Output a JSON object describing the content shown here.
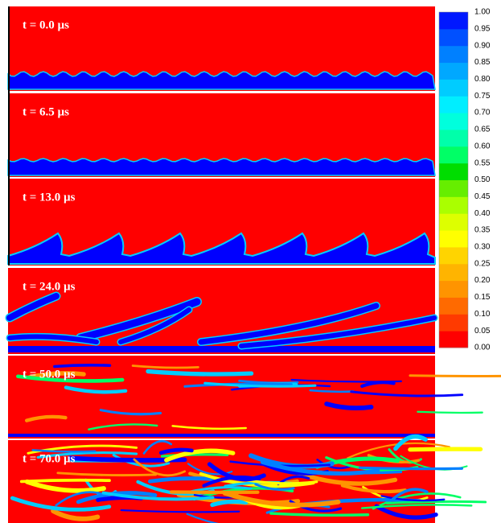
{
  "panels": [
    {
      "label": "t = 0.0 µs"
    },
    {
      "label": "t = 6.5 µs"
    },
    {
      "label": "t = 13.0 µs"
    },
    {
      "label": "t = 24.0 µs"
    },
    {
      "label": "t = 50.0 µs"
    },
    {
      "label": "t = 70.0 µs"
    }
  ],
  "colorbar": {
    "ticks": [
      "0.00",
      "0.05",
      "0.10",
      "0.15",
      "0.20",
      "0.25",
      "0.30",
      "0.35",
      "0.40",
      "0.45",
      "0.50",
      "0.55",
      "0.60",
      "0.65",
      "0.70",
      "0.75",
      "0.80",
      "0.85",
      "0.90",
      "0.95",
      "1.00"
    ],
    "colors": [
      "#ff0000",
      "#ff3a00",
      "#ff6a00",
      "#ff9400",
      "#ffb400",
      "#ffd400",
      "#ffff00",
      "#ddff00",
      "#aaff00",
      "#66ee00",
      "#00dd00",
      "#00ff66",
      "#00ffaa",
      "#00ffdd",
      "#00eeff",
      "#00ccff",
      "#00a8ff",
      "#0080ff",
      "#0050ff",
      "#0018ff"
    ]
  }
}
